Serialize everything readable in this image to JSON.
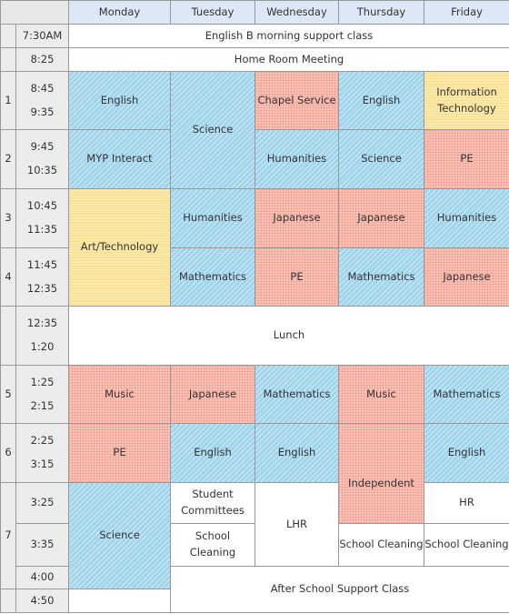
{
  "colors": {
    "subject_blue": "#9fd4ec",
    "subject_red": "#f5a799",
    "subject_yellow": "#f8df88",
    "header_blue": "#dde7f5"
  },
  "days": [
    "Monday",
    "Tuesday",
    "Wednesday",
    "Thursday",
    "Friday"
  ],
  "rows": {
    "pre1": {
      "time": "7:30AM",
      "text": "English B morning support class"
    },
    "pre2": {
      "time": "8:25",
      "text": "Home Room Meeting"
    },
    "p1": {
      "period": "1",
      "start": "8:45",
      "end": "9:35"
    },
    "p2": {
      "period": "2",
      "start": "9:45",
      "end": "10:35"
    },
    "p3": {
      "period": "3",
      "start": "10:45",
      "end": "11:35"
    },
    "p4": {
      "period": "4",
      "start": "11:45",
      "end": "12:35"
    },
    "lunch": {
      "start": "12:35",
      "end": "1:20",
      "text": "Lunch"
    },
    "p5": {
      "period": "5",
      "start": "1:25",
      "end": "2:15"
    },
    "p6": {
      "period": "6",
      "start": "2:25",
      "end": "3:15"
    },
    "p7": {
      "period": "7",
      "t1": "3:25",
      "t2": "3:35",
      "t3": "4:00"
    },
    "post": {
      "time": "4:50",
      "text": "After School Support Class"
    }
  },
  "cells": {
    "mon_p1": "English",
    "tue_p1_p2": "Science",
    "wed_p1": "Chapel Service",
    "thu_p1": "English",
    "fri_p1": "Information Technology",
    "mon_p2": "MYP Interact",
    "wed_p2": "Humanities",
    "thu_p2": "Science",
    "fri_p2": "PE",
    "mon_p3_p4": "Art/Technology",
    "tue_p3": "Humanities",
    "wed_p3": "Japanese",
    "thu_p3": "Japanese",
    "fri_p3": "Humanities",
    "tue_p4": "Mathematics",
    "wed_p4": "PE",
    "thu_p4": "Mathematics",
    "fri_p4": "Japanese",
    "mon_p5": "Music",
    "tue_p5": "Japanese",
    "wed_p5": "Mathematics",
    "thu_p5": "Music",
    "fri_p5": "Mathematics",
    "mon_p6": "PE",
    "tue_p6": "English",
    "wed_p6": "English",
    "thu_p6_p7": "Independent",
    "fri_p6": "English",
    "mon_p7": "Science",
    "tue_p7a": "Student Committees",
    "wed_p7": "LHR",
    "fri_p7a": "HR",
    "tue_p7b": "School Cleaning",
    "thu_p7b": "School Cleaning",
    "fri_p7b": "School Cleaning"
  }
}
